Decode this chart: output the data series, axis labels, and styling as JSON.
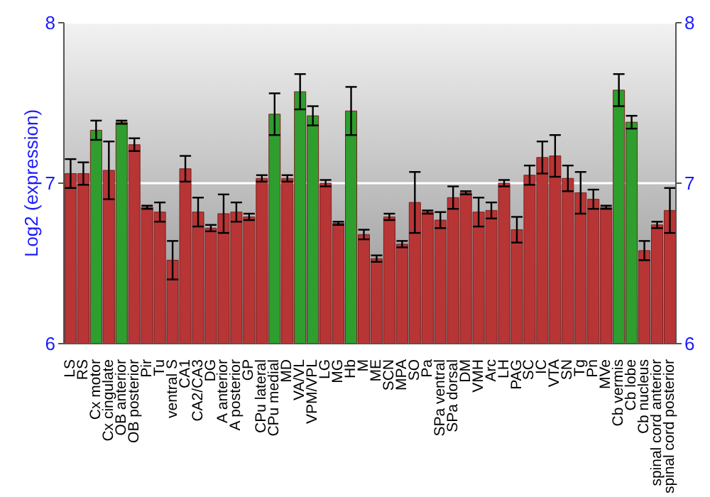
{
  "chart_data": {
    "type": "bar",
    "ylabel": "Log2 (expression)",
    "categories": [
      "LS",
      "RS",
      "Cx motor",
      "Cx cingulate",
      "OB anterior",
      "OB posterior",
      "Pir",
      "Tu",
      "ventral S",
      "CA1",
      "CA2/CA3",
      "DG",
      "A anterior",
      "A posterior",
      "GP",
      "CPu lateral",
      "CPu medial",
      "MD",
      "VA/VL",
      "VPM/VPL",
      "LG",
      "MG",
      "Hb",
      "M",
      "ME",
      "SCN",
      "MPA",
      "SO",
      "Pa",
      "SPa ventral",
      "SPa dorsal",
      "DM",
      "VMH",
      "Arc",
      "LH",
      "PAG",
      "SC",
      "IC",
      "VTA",
      "SN",
      "Tg",
      "Pn",
      "MVe",
      "Cb vermis",
      "Cb lobe",
      "Cb nucleus",
      "spinal cord anterior",
      "spinal cord posterior"
    ],
    "values": [
      7.06,
      7.06,
      7.33,
      7.08,
      7.38,
      7.24,
      6.85,
      6.82,
      6.52,
      7.09,
      6.82,
      6.72,
      6.81,
      6.82,
      6.79,
      7.03,
      7.43,
      7.03,
      7.57,
      7.42,
      7.0,
      6.75,
      7.45,
      6.68,
      6.53,
      6.79,
      6.62,
      6.88,
      6.82,
      6.77,
      6.91,
      6.94,
      6.82,
      6.83,
      7.0,
      6.71,
      7.05,
      7.16,
      7.17,
      7.03,
      6.94,
      6.9,
      6.85,
      7.58,
      7.38,
      6.58,
      6.74,
      6.83
    ],
    "errors": [
      0.09,
      0.07,
      0.06,
      0.18,
      0.01,
      0.04,
      0.01,
      0.06,
      0.12,
      0.08,
      0.09,
      0.02,
      0.12,
      0.06,
      0.02,
      0.02,
      0.13,
      0.02,
      0.11,
      0.06,
      0.02,
      0.01,
      0.15,
      0.03,
      0.02,
      0.02,
      0.02,
      0.19,
      0.01,
      0.05,
      0.07,
      0.01,
      0.09,
      0.05,
      0.02,
      0.08,
      0.06,
      0.1,
      0.13,
      0.08,
      0.13,
      0.06,
      0.01,
      0.1,
      0.04,
      0.06,
      0.02,
      0.14
    ],
    "colors": [
      "#b83535",
      "#b83535",
      "#2e9e2e",
      "#b83535",
      "#2e9e2e",
      "#b83535",
      "#b83535",
      "#b83535",
      "#b83535",
      "#b83535",
      "#b83535",
      "#b83535",
      "#b83535",
      "#b83535",
      "#b83535",
      "#b83535",
      "#2e9e2e",
      "#b83535",
      "#2e9e2e",
      "#2e9e2e",
      "#b83535",
      "#b83535",
      "#2e9e2e",
      "#b83535",
      "#b83535",
      "#b83535",
      "#b83535",
      "#b83535",
      "#b83535",
      "#b83535",
      "#b83535",
      "#b83535",
      "#b83535",
      "#b83535",
      "#b83535",
      "#b83535",
      "#b83535",
      "#b83535",
      "#b83535",
      "#b83535",
      "#b83535",
      "#b83535",
      "#b83535",
      "#2e9e2e",
      "#2e9e2e",
      "#b83535",
      "#b83535",
      "#b83535"
    ],
    "ylim": [
      6,
      8
    ],
    "yticks": [
      6,
      7,
      8
    ],
    "y2lim": [
      6,
      8
    ],
    "y2ticks": [
      6,
      7,
      8
    ],
    "grid": "y"
  }
}
